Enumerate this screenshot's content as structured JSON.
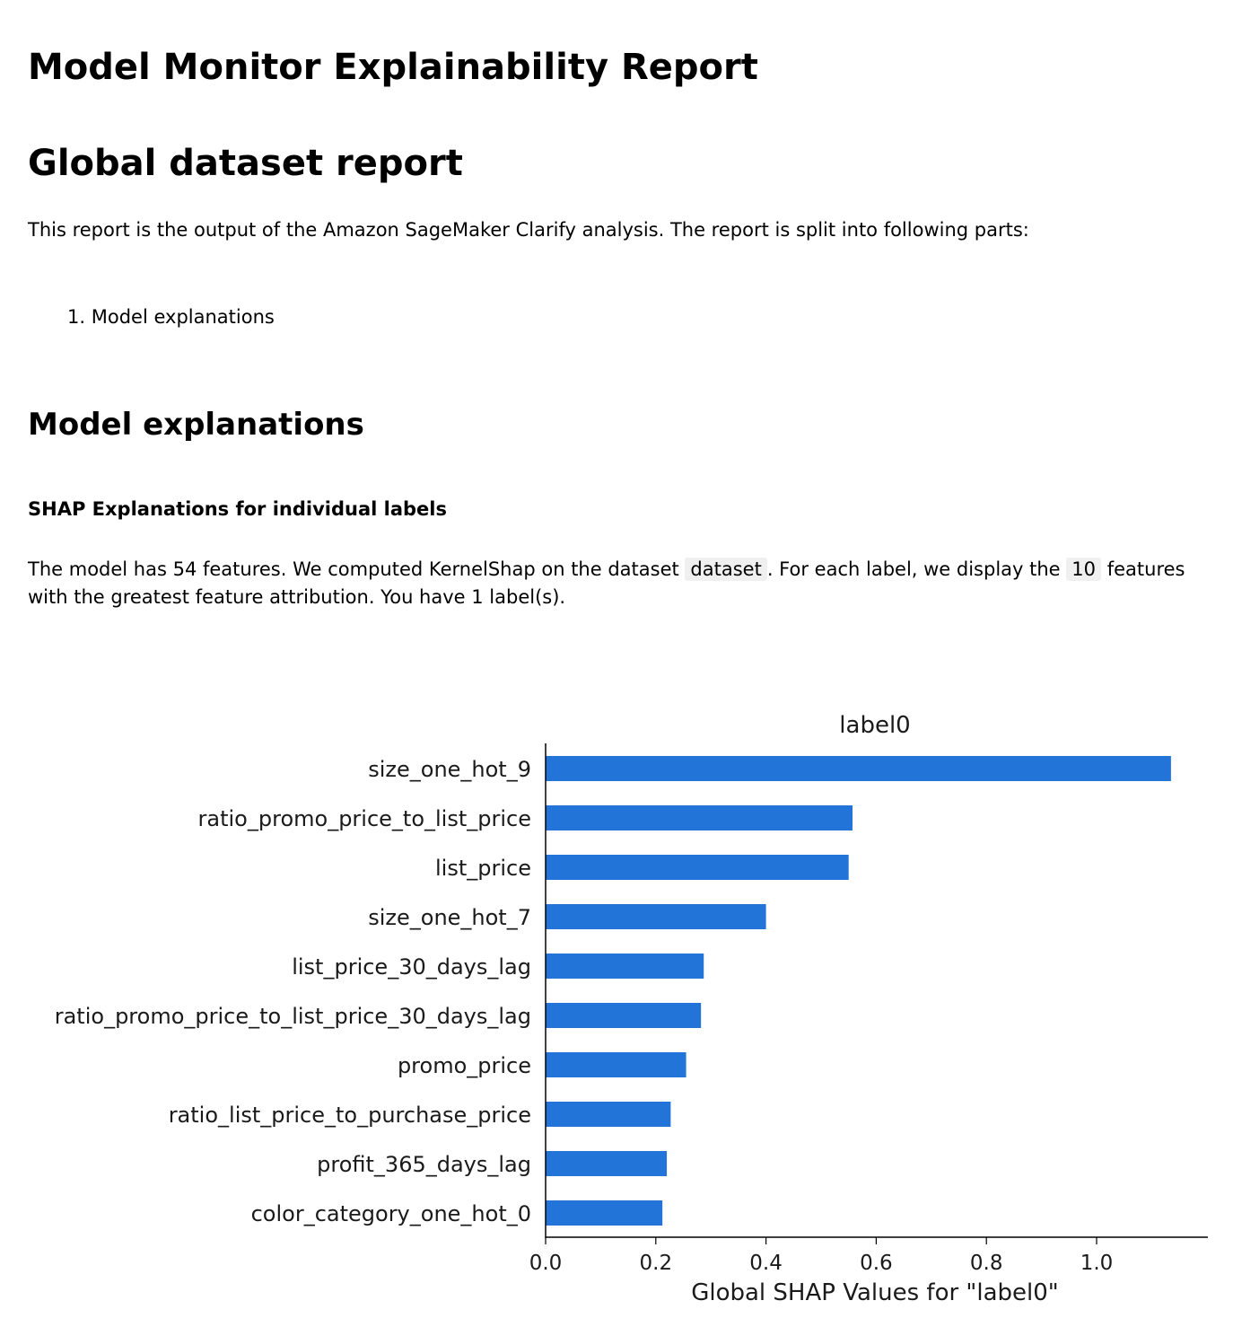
{
  "report": {
    "title": "Model Monitor Explainability Report",
    "global_heading": "Global dataset report",
    "intro": "This report is the output of the Amazon SageMaker Clarify analysis. The report is split into following parts:",
    "parts": [
      {
        "number": "1.",
        "label": "Model explanations"
      }
    ],
    "explanations_heading": "Model explanations",
    "shap_subheading": "SHAP Explanations for individual labels",
    "desc": {
      "part1": "The model has 54 features. We computed KernelShap on the dataset",
      "dataset_code": "dataset",
      "part2": ". For each label, we display the",
      "count_code": "10",
      "part3": "features with the greatest feature attribution. You have 1 label(s)."
    }
  },
  "chart_data": {
    "type": "bar",
    "orientation": "horizontal",
    "title": "label0",
    "xlabel": "Global SHAP Values for \"label0\"",
    "ylabel": "",
    "xlim": [
      0,
      1.2
    ],
    "xticks": [
      0.0,
      0.2,
      0.4,
      0.6,
      0.8,
      1.0
    ],
    "xtick_labels": [
      "0.0",
      "0.2",
      "0.4",
      "0.6",
      "0.8",
      "1.0"
    ],
    "categories": [
      "size_one_hot_9",
      "ratio_promo_price_to_list_price",
      "list_price",
      "size_one_hot_7",
      "list_price_30_days_lag",
      "ratio_promo_price_to_list_price_30_days_lag",
      "promo_price",
      "ratio_list_price_to_purchase_price",
      "profit_365_days_lag",
      "color_category_one_hot_0"
    ],
    "values": [
      1.135,
      0.557,
      0.55,
      0.4,
      0.287,
      0.282,
      0.255,
      0.227,
      0.22,
      0.212
    ],
    "bar_color": "#2274d8",
    "grid": false,
    "legend": "none"
  }
}
